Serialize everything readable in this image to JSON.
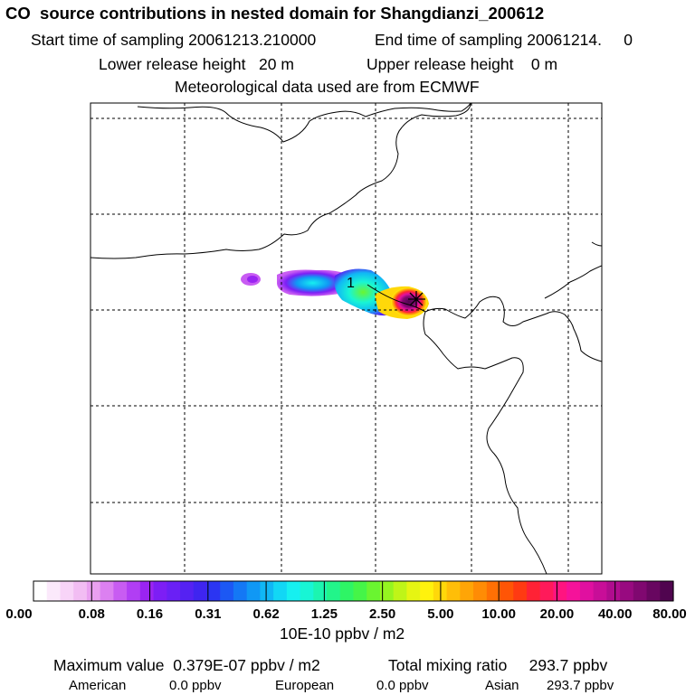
{
  "title": {
    "line1": "CO  source contributions in nested domain for Shangdianzi_200612",
    "start_label": "Start time of sampling 20061213.210000",
    "end_label": "End time of sampling 20061214.     0",
    "lower_label": "Lower release height   20 m",
    "upper_label": "Upper release height    0 m",
    "met_label": "Meteorological data used are from ECMWF"
  },
  "map": {
    "contour_label": "1",
    "receptor_marker": "Shangdianzi station (*)"
  },
  "colorbar": {
    "tick_labels": [
      "0.00",
      "0.08",
      "0.16",
      "0.31",
      "0.62",
      "1.25",
      "2.50",
      "5.00",
      "10.00",
      "20.00",
      "40.00",
      "80.00"
    ],
    "unit_label": "10E-10 ppbv / m2",
    "colors": [
      "#ffffff",
      "#fbe9fb",
      "#f8d4f8",
      "#f2bdf3",
      "#e9a0f0",
      "#dc80f1",
      "#c85cf2",
      "#b13ef4",
      "#9a24f2",
      "#7d1ef5",
      "#6a20f5",
      "#5522f2",
      "#3f25f0",
      "#2b35f2",
      "#1c58f4",
      "#1478f5",
      "#1098f5",
      "#10b7f5",
      "#12d7f5",
      "#16f0f0",
      "#18f5d5",
      "#1cf5b0",
      "#22f58a",
      "#2ef565",
      "#45f548",
      "#6af530",
      "#95f520",
      "#bff518",
      "#e6f512",
      "#fff20d",
      "#ffd80a",
      "#ffbe08",
      "#ffa506",
      "#ff8c05",
      "#ff7004",
      "#ff5506",
      "#ff3a12",
      "#ff2235",
      "#ff1a5a",
      "#ff1480",
      "#f5129a",
      "#e010a0",
      "#c80e98",
      "#b00c8e",
      "#980a80",
      "#800870",
      "#680660",
      "#50054f"
    ]
  },
  "footer": {
    "max_label": "Maximum value  0.379E-07 ppbv / m2",
    "total_label": "Total mixing ratio     293.7 ppbv",
    "american_label": "American",
    "american_value": "0.0 ppbv",
    "european_label": "European",
    "european_value": "0.0 ppbv",
    "asian_label": "Asian",
    "asian_value": "293.7 ppbv"
  },
  "chart_data": {
    "type": "heatmap",
    "title": "CO  source contributions in nested domain for Shangdianzi_200612",
    "colorscale_unit": "10E-10 ppbv / m2",
    "colorscale_ticks": [
      0.0,
      0.08,
      0.16,
      0.31,
      0.62,
      1.25,
      2.5,
      5.0,
      10.0,
      20.0,
      40.0,
      80.0
    ],
    "max_value_ppbv_per_m2": 3.79e-08,
    "total_mixing_ratio_ppbv": 293.7,
    "contributions_ppbv": {
      "American": 0.0,
      "European": 0.0,
      "Asian": 293.7
    },
    "grid": true
  }
}
